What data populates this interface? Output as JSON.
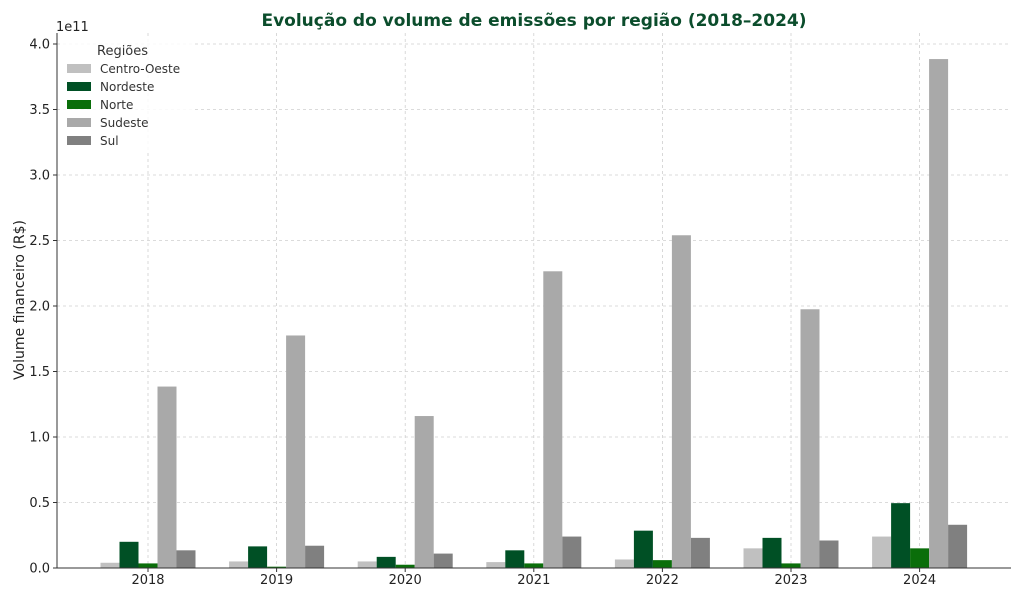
{
  "chart_data": {
    "type": "bar",
    "title": "Evolução do volume de emissões por região (2018–2024)",
    "title_color": "#0b4d2c",
    "ylabel": "Volume financeiro (R$)",
    "xlabel": "",
    "y_scale_label": "1e11",
    "y_scale": 100000000000,
    "ylim": [
      0,
      400000000000
    ],
    "y_ticks": [
      0,
      50000000000,
      100000000000,
      150000000000,
      200000000000,
      250000000000,
      300000000000,
      350000000000,
      400000000000
    ],
    "y_tick_labels": [
      "0.0",
      "0.5",
      "1.0",
      "1.5",
      "2.0",
      "2.5",
      "3.0",
      "3.5",
      "4.0"
    ],
    "grid": true,
    "legend_title": "Regiões",
    "legend_position": "top-left",
    "categories": [
      "2018",
      "2019",
      "2020",
      "2021",
      "2022",
      "2023",
      "2024"
    ],
    "series": [
      {
        "name": "Centro-Oeste",
        "color": "#c0c0c0",
        "values": [
          4000000000,
          5000000000,
          5000000000,
          4500000000,
          6500000000,
          15000000000,
          24000000000
        ]
      },
      {
        "name": "Nordeste",
        "color": "#005025",
        "values": [
          20000000000,
          16500000000,
          8500000000,
          13500000000,
          28500000000,
          23000000000,
          49500000000
        ]
      },
      {
        "name": "Norte",
        "color": "#0a6e0a",
        "values": [
          3500000000,
          1000000000,
          2500000000,
          3500000000,
          6000000000,
          3500000000,
          15000000000
        ]
      },
      {
        "name": "Sudeste",
        "color": "#a9a9a9",
        "values": [
          138500000000,
          177500000000,
          116000000000,
          226500000000,
          254000000000,
          197500000000,
          388500000000
        ]
      },
      {
        "name": "Sul",
        "color": "#808080",
        "values": [
          13500000000,
          17000000000,
          11000000000,
          24000000000,
          23000000000,
          21000000000,
          33000000000
        ]
      }
    ]
  }
}
